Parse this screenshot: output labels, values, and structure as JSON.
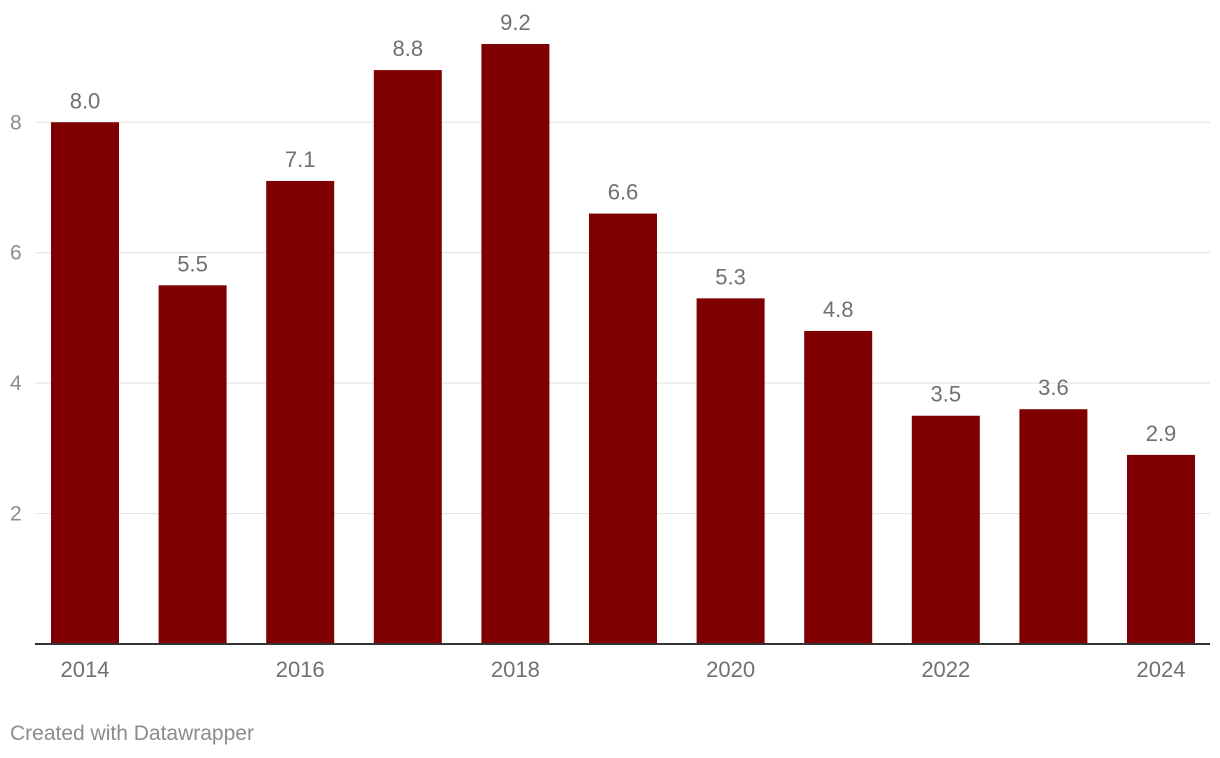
{
  "chart_data": {
    "type": "bar",
    "categories": [
      "2014",
      "2015",
      "2016",
      "2017",
      "2018",
      "2019",
      "2020",
      "2021",
      "2022",
      "2023",
      "2024"
    ],
    "values": [
      8.0,
      5.5,
      7.1,
      8.8,
      9.2,
      6.6,
      5.3,
      4.8,
      3.5,
      3.6,
      2.9
    ],
    "value_labels": [
      "8.0",
      "5.5",
      "7.1",
      "8.8",
      "9.2",
      "6.6",
      "5.3",
      "4.8",
      "3.5",
      "3.6",
      "2.9"
    ],
    "x_tick_labels": [
      "2014",
      "2016",
      "2018",
      "2020",
      "2022",
      "2024"
    ],
    "y_ticks": [
      2,
      4,
      6,
      8
    ],
    "y_tick_labels": [
      "2",
      "4",
      "6",
      "8"
    ],
    "ylim": [
      0,
      9.2
    ],
    "grid": true,
    "bar_color": "#7f0000",
    "title": "",
    "xlabel": "",
    "ylabel": ""
  },
  "footer": {
    "credit": "Created with Datawrapper"
  }
}
